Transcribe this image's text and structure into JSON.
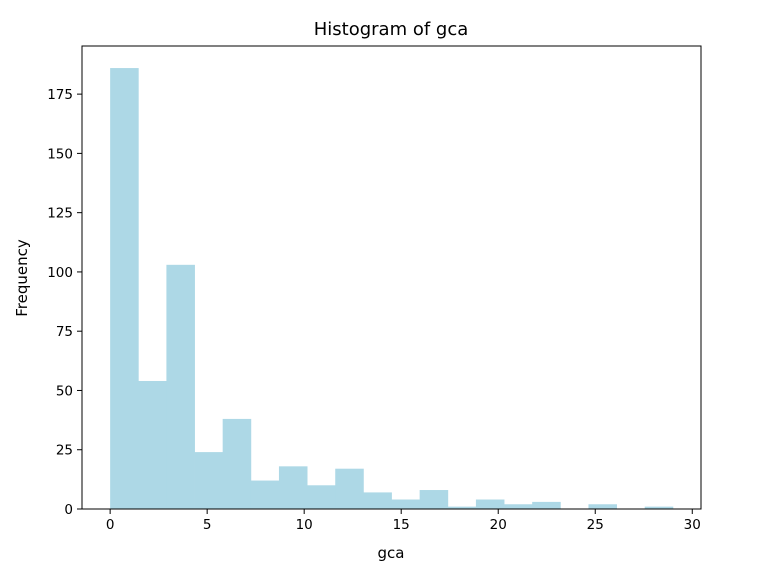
{
  "chart_data": {
    "type": "bar",
    "title": "Histogram of gca",
    "xlabel": "gca",
    "ylabel": "Frequency",
    "bar_color": "#add8e6",
    "xlim": [
      -1.45,
      30.45
    ],
    "ylim": [
      0,
      195.3
    ],
    "xticks": [
      0,
      5,
      10,
      15,
      20,
      25,
      30
    ],
    "yticks": [
      0,
      25,
      50,
      75,
      100,
      125,
      150,
      175
    ],
    "grid": false,
    "legend": "none",
    "bin_edges": [
      0,
      1.45,
      2.9,
      4.35,
      5.8,
      7.25,
      8.7,
      10.15,
      11.6,
      13.05,
      14.5,
      15.95,
      17.4,
      18.85,
      20.3,
      21.75,
      23.2,
      24.65,
      26.1,
      27.55,
      29.0
    ],
    "values": [
      186,
      54,
      103,
      24,
      38,
      12,
      18,
      10,
      17,
      7,
      4,
      8,
      1,
      4,
      2,
      3,
      0,
      2,
      0,
      1
    ]
  }
}
